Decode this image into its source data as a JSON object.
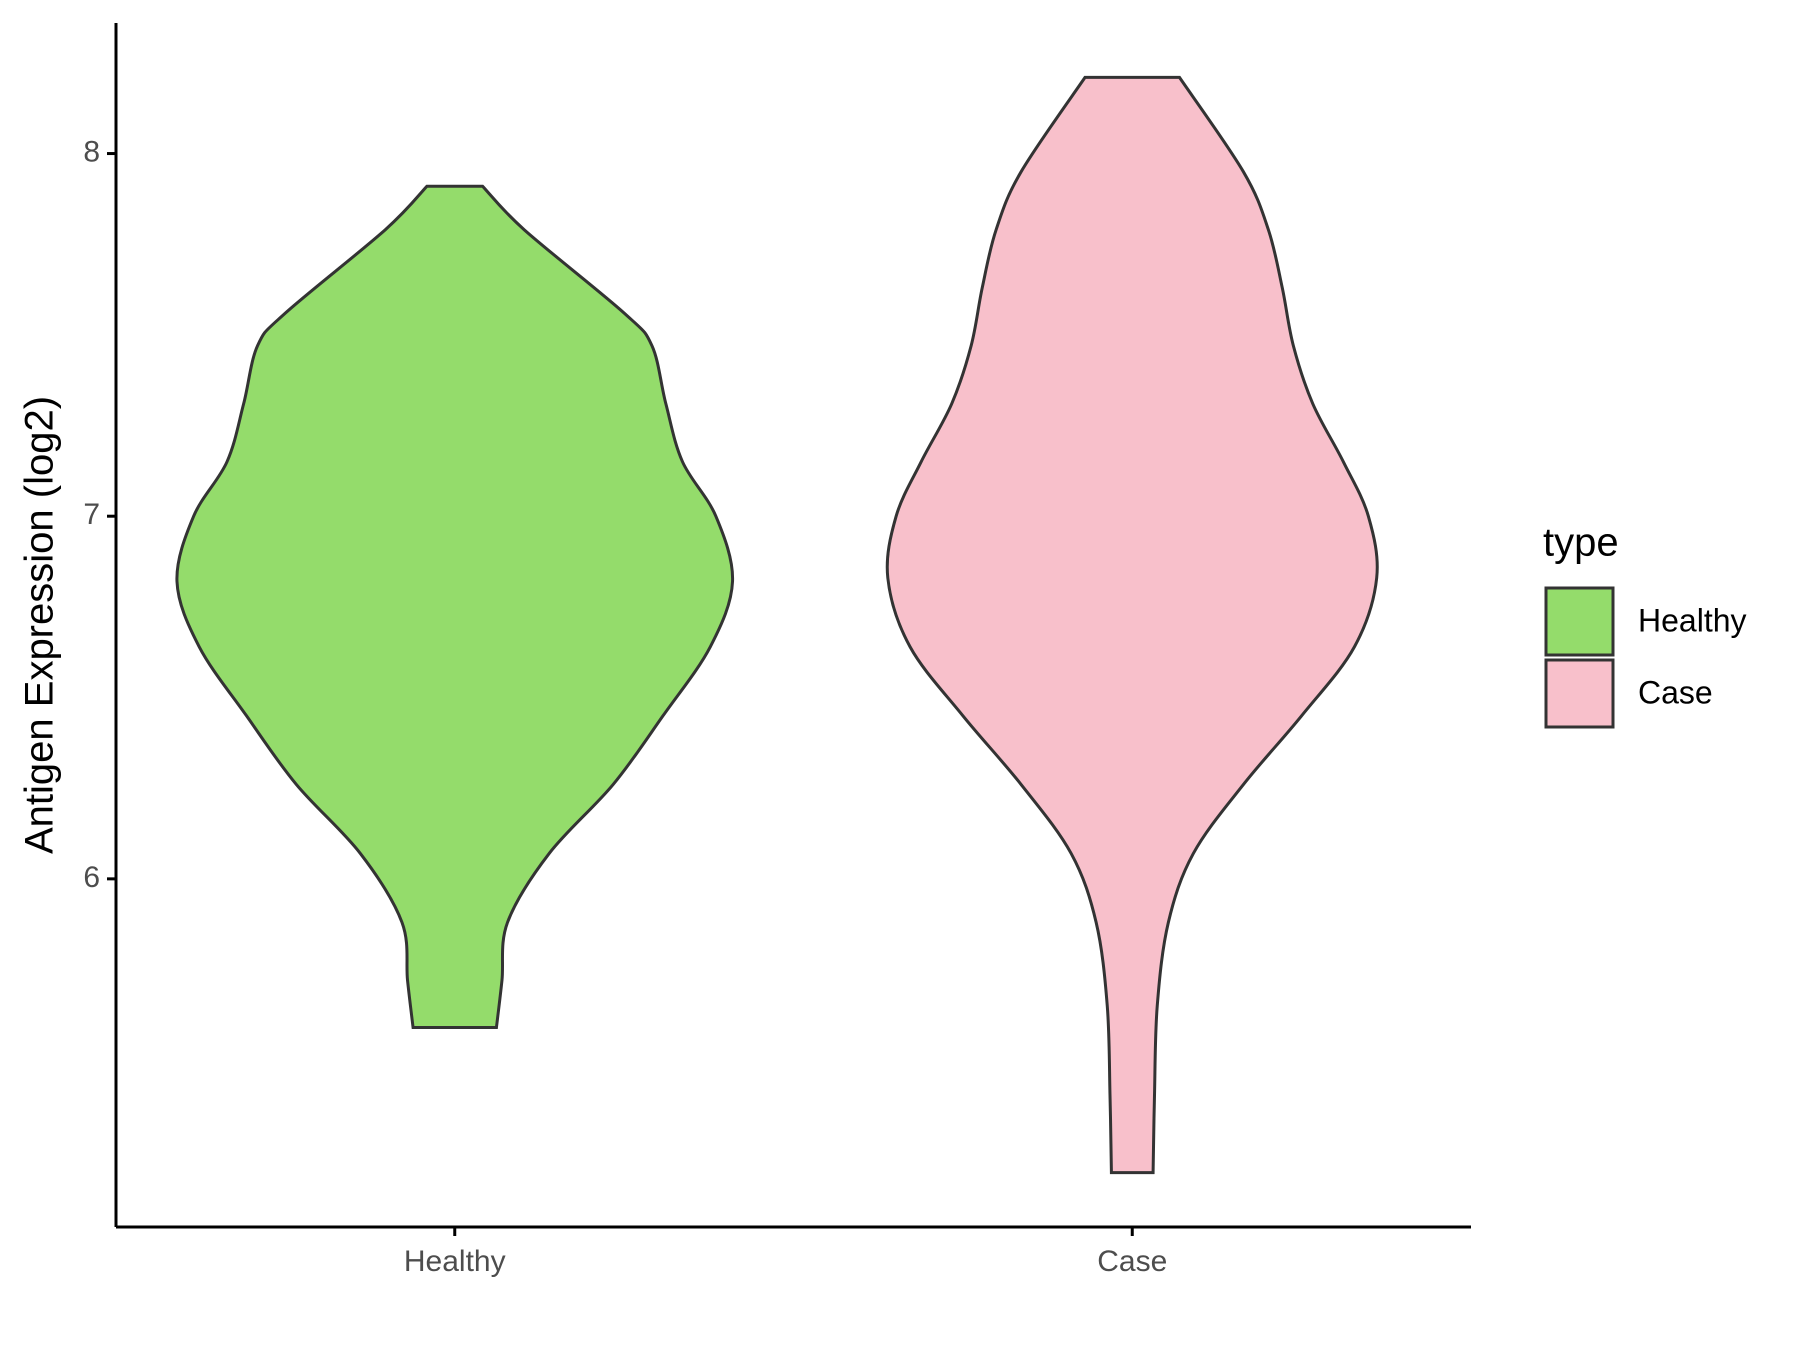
{
  "chart_data": {
    "type": "violin",
    "ylabel": "Antigen Expression (log2)",
    "legend_title": "type",
    "legend": "right",
    "categories": [
      "Healthy",
      "Case"
    ],
    "series": [
      {
        "name": "Healthy",
        "color": "#94dc6b",
        "y": [
          7.91,
          7.79,
          7.56,
          7.47,
          7.31,
          7.15,
          7.0,
          6.82,
          6.64,
          6.45,
          6.26,
          6.07,
          5.88,
          5.72,
          5.59
        ],
        "density": [
          0.1,
          0.25,
          0.61,
          0.71,
          0.76,
          0.82,
          0.94,
          1.0,
          0.92,
          0.75,
          0.57,
          0.34,
          0.19,
          0.17,
          0.15
        ]
      },
      {
        "name": "Case",
        "color": "#f8c0cb",
        "y": [
          8.21,
          7.95,
          7.79,
          7.63,
          7.47,
          7.31,
          7.15,
          7.0,
          6.83,
          6.64,
          6.45,
          6.26,
          6.07,
          5.88,
          5.65,
          5.4,
          5.19
        ],
        "density": [
          0.17,
          0.4,
          0.49,
          0.54,
          0.58,
          0.65,
          0.76,
          0.85,
          0.88,
          0.8,
          0.61,
          0.4,
          0.22,
          0.13,
          0.09,
          0.08,
          0.075
        ]
      }
    ],
    "ylim": [
      5.04,
      8.36
    ],
    "yticks": [
      6,
      7,
      8
    ]
  }
}
